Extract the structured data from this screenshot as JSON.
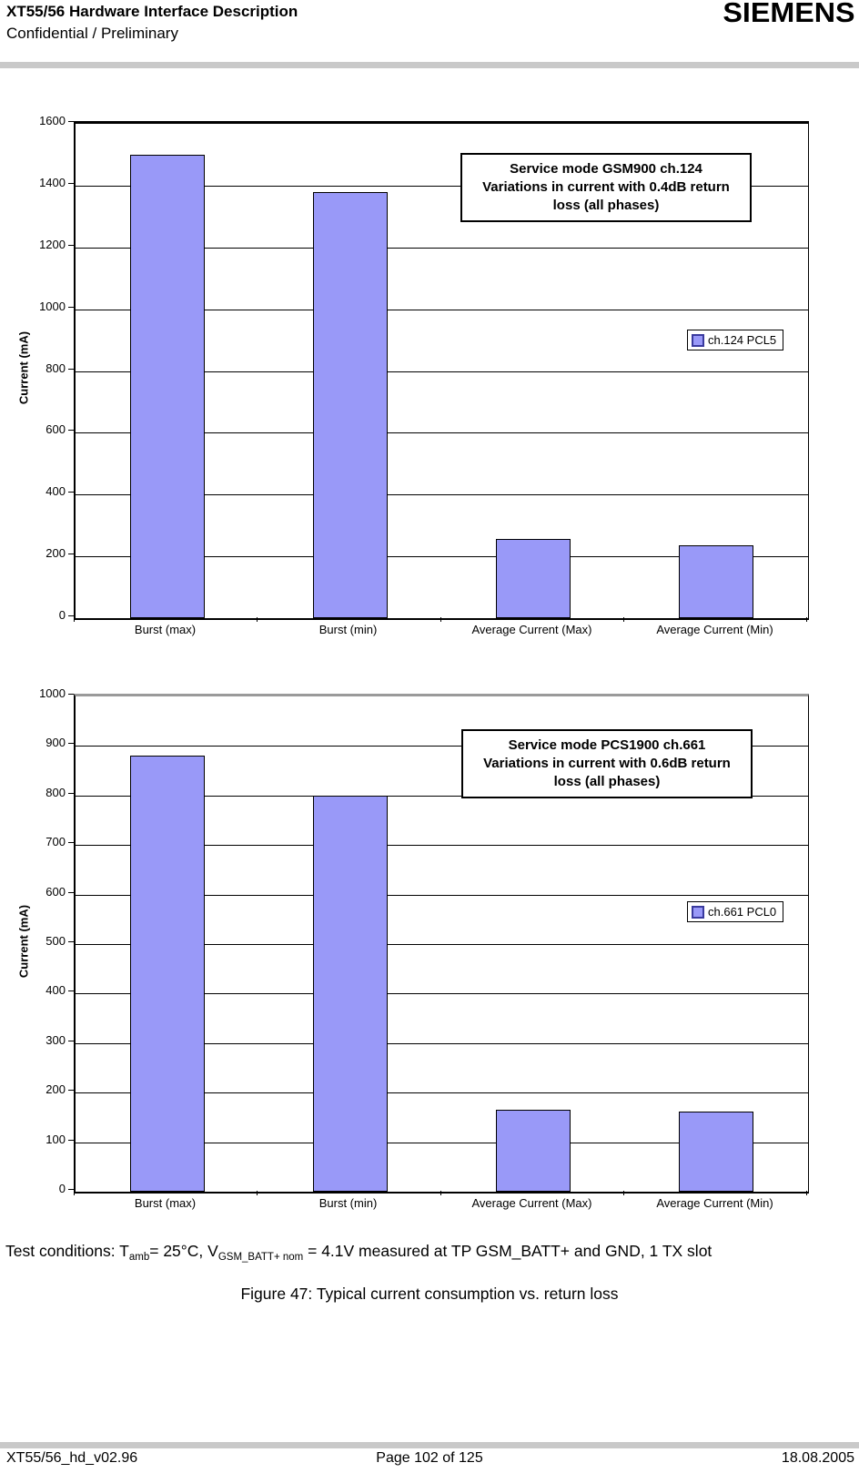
{
  "header": {
    "title": "XT55/56 Hardware Interface Description",
    "subtitle": "Confidential / Preliminary",
    "logo": "SIEMENS"
  },
  "chart_data": [
    {
      "type": "bar",
      "title": "Service mode GSM900 ch.124 Variations in current with 0.4dB return loss (all phases)",
      "title_lines": [
        "Service mode GSM900 ch.124",
        "Variations in current with 0.4dB return",
        "loss (all phases)"
      ],
      "categories": [
        "Burst (max)",
        "Burst (min)",
        "Average Current (Max)",
        "Average Current (Min)"
      ],
      "values": [
        1500,
        1380,
        255,
        235
      ],
      "ylabel": "Current (mA)",
      "xlabel": "",
      "ylim": [
        0,
        1600
      ],
      "ytick_step": 200,
      "grid": true,
      "legend": [
        "ch.124 PCL5"
      ],
      "legend_position": "right",
      "bar_color": "#9999f8"
    },
    {
      "type": "bar",
      "title": "Service mode PCS1900 ch.661 Variations in current with 0.6dB return loss (all phases)",
      "title_lines": [
        "Service mode PCS1900 ch.661",
        "Variations in current with 0.6dB return",
        "loss (all phases)"
      ],
      "categories": [
        "Burst (max)",
        "Burst (min)",
        "Average Current (Max)",
        "Average Current (Min)"
      ],
      "values": [
        880,
        800,
        165,
        162
      ],
      "ylabel": "Current (mA)",
      "xlabel": "",
      "ylim": [
        0,
        1000
      ],
      "ytick_step": 100,
      "grid": true,
      "legend": [
        "ch.661 PCL0"
      ],
      "legend_position": "right",
      "bar_color": "#9999f8"
    }
  ],
  "test_conditions": {
    "segments": [
      {
        "text": "Test conditions: T",
        "sub": false
      },
      {
        "text": "amb",
        "sub": true
      },
      {
        "text": "= 25°C, V",
        "sub": false
      },
      {
        "text": "GSM_BATT+ nom",
        "sub": true
      },
      {
        "text": " = 4.1V measured at TP GSM_BATT+ and GND, 1 TX slot",
        "sub": false
      }
    ]
  },
  "figure_caption": "Figure 47: Typical current consumption vs. return loss",
  "footer": {
    "left": "XT55/56_hd_v02.96",
    "center": "Page 102 of 125",
    "right": "18.08.2005"
  }
}
